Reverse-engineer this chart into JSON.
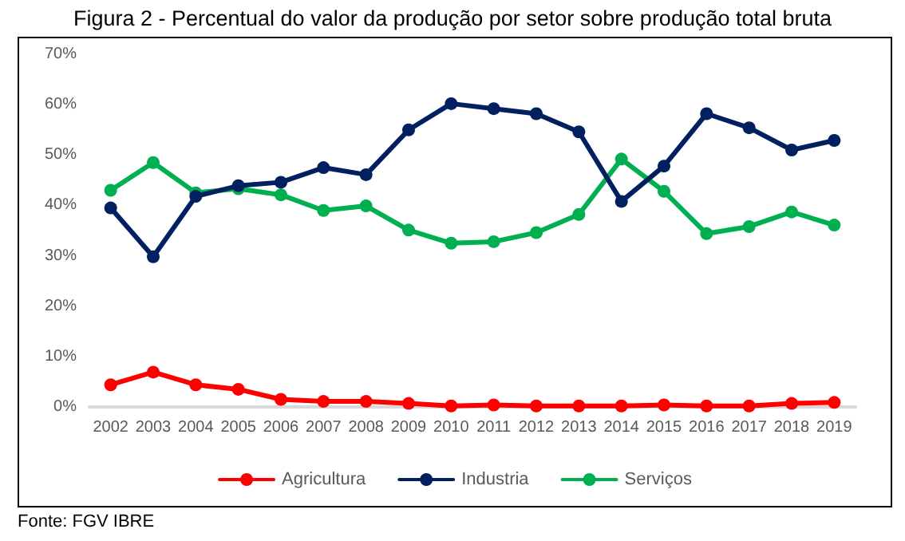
{
  "chart_data": {
    "type": "line",
    "title": "Figura 2 - Percentual do valor da produção por setor sobre produção total bruta",
    "categories": [
      "2002",
      "2003",
      "2004",
      "2005",
      "2006",
      "2007",
      "2008",
      "2009",
      "2010",
      "2011",
      "2012",
      "2013",
      "2014",
      "2015",
      "2016",
      "2017",
      "2018",
      "2019"
    ],
    "series": [
      {
        "name": "Agricultura",
        "color": "#ff0000",
        "values": [
          4.4,
          6.9,
          4.4,
          3.5,
          1.5,
          1.1,
          1.1,
          0.7,
          0.2,
          0.4,
          0.2,
          0.2,
          0.2,
          0.4,
          0.2,
          0.2,
          0.7,
          0.9
        ]
      },
      {
        "name": "Industria",
        "color": "#002060",
        "values": [
          39.5,
          29.8,
          41.8,
          43.9,
          44.6,
          47.5,
          46.1,
          55.0,
          60.2,
          59.2,
          58.2,
          54.6,
          40.8,
          47.8,
          58.2,
          55.4,
          51.0,
          52.9
        ]
      },
      {
        "name": "Serviços",
        "color": "#00b050",
        "values": [
          43.0,
          48.5,
          42.5,
          43.3,
          42.1,
          39.0,
          39.9,
          35.1,
          32.5,
          32.8,
          34.6,
          38.2,
          49.2,
          42.8,
          34.4,
          35.8,
          38.7,
          36.1
        ]
      }
    ],
    "ylim": [
      0,
      70
    ],
    "yticks": [
      {
        "value": 0,
        "label": "0%"
      },
      {
        "value": 10,
        "label": "10%"
      },
      {
        "value": 20,
        "label": "20%"
      },
      {
        "value": 30,
        "label": "30%"
      },
      {
        "value": 40,
        "label": "40%"
      },
      {
        "value": 50,
        "label": "50%"
      },
      {
        "value": 60,
        "label": "60%"
      },
      {
        "value": 70,
        "label": "70%"
      }
    ],
    "grid": false,
    "legend": "bottom",
    "marker": "circle",
    "line_style": "solid",
    "annotations": [
      "Fonte: FGV IBRE"
    ]
  }
}
